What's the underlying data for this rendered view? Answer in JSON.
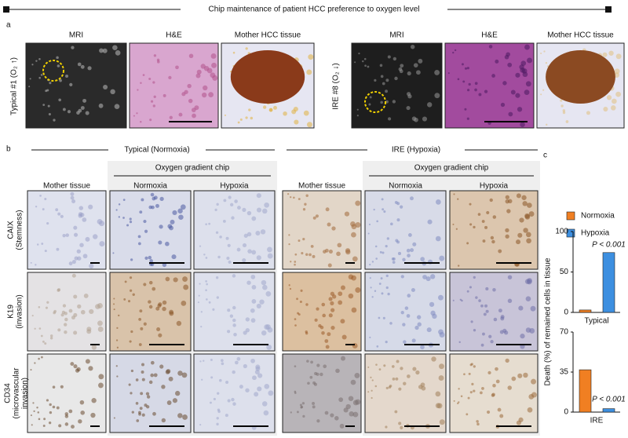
{
  "header": {
    "title": "Chip maintenance of patient HCC preference to oxygen level"
  },
  "panel_a": {
    "label": "a",
    "cases": [
      {
        "label": "Typical #1 (O₂ ↑)",
        "color": "#e8742a",
        "columns": [
          "MRI",
          "H&E",
          "Mother HCC tissue"
        ]
      },
      {
        "label": "IRE #8 (O₂ ↓)",
        "color": "#4a72c0",
        "columns": [
          "MRI",
          "H&E",
          "Mother HCC tissue"
        ]
      }
    ]
  },
  "panel_b": {
    "label": "b",
    "groups": [
      {
        "title": "Typical (Normoxia)",
        "color": "#e8742a",
        "mother": "Mother tissue",
        "chip": "Oxygen gradient chip",
        "chip_columns": [
          "Normoxia",
          "Hypoxia"
        ]
      },
      {
        "title": "IRE (Hypoxia)",
        "color": "#4a72c0",
        "mother": "Mother tissue",
        "chip": "Oxygen gradient chip",
        "chip_columns": [
          "Normoxia",
          "Hypoxia"
        ]
      }
    ],
    "column_colors": [
      "#e8742a",
      "#4a72c0"
    ],
    "rows": [
      [
        "CAIX",
        "(Stemness)"
      ],
      [
        "K19",
        "(invasion)"
      ],
      [
        "CD34",
        "(microvascular",
        "invasion)"
      ]
    ]
  },
  "panel_c": {
    "label": "c",
    "ylabel": "Death (%) of remained cells in tissue"
  },
  "chart_data": [
    {
      "type": "bar",
      "x_label": "Typical",
      "annotation": "P < 0.001",
      "series": [
        {
          "name": "Normoxia",
          "color": "#f07f22",
          "values": [
            3
          ]
        },
        {
          "name": "Hypoxia",
          "color": "#3d8fe0",
          "values": [
            74
          ]
        }
      ],
      "ylim": [
        0,
        100
      ],
      "yticks": [
        0,
        50,
        100
      ]
    },
    {
      "type": "bar",
      "x_label": "IRE",
      "annotation": "P < 0.001",
      "series": [
        {
          "color": "#f07f22",
          "values": [
            37
          ]
        },
        {
          "color": "#3d8fe0",
          "values": [
            3
          ]
        }
      ],
      "ylim": [
        0,
        70
      ],
      "yticks": [
        0,
        35,
        70
      ]
    }
  ]
}
